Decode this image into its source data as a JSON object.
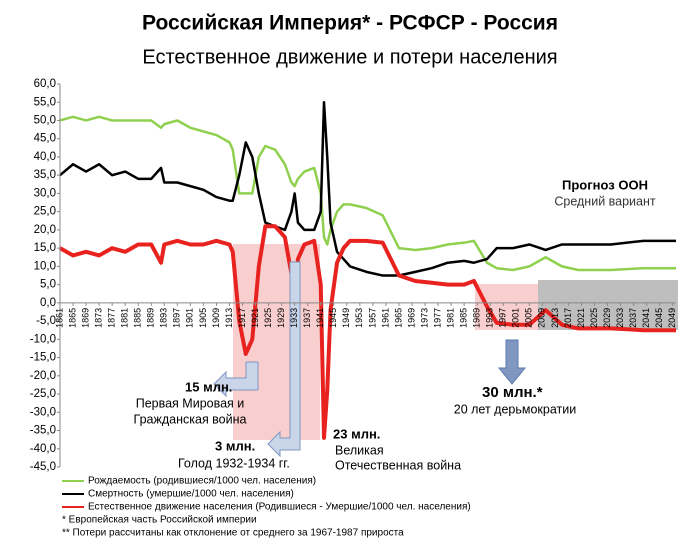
{
  "chart_data": {
    "type": "line",
    "title": "Российская Империя* - РСФСР - Россия",
    "subtitle": "Естественное движение и потери населения",
    "x": [
      1861,
      1865,
      1869,
      1873,
      1877,
      1881,
      1885,
      1889,
      1892,
      1893,
      1897,
      1901,
      1905,
      1909,
      1913,
      1914,
      1916,
      1918,
      1920,
      1922,
      1924,
      1927,
      1930,
      1932,
      1933,
      1934,
      1936,
      1939,
      1941,
      1942,
      1943,
      1944,
      1946,
      1948,
      1950,
      1955,
      1960,
      1965,
      1970,
      1975,
      1980,
      1985,
      1988,
      1992,
      1995,
      2000,
      2005,
      2010,
      2015,
      2020,
      2030,
      2040,
      2050
    ],
    "series": [
      {
        "name": "Рождаемость (родившиеся/1000 чел. населения)",
        "color": "#8fd14f",
        "values": [
          50,
          51,
          50,
          51,
          50,
          50,
          50,
          50,
          48,
          49,
          50,
          48,
          47,
          46,
          44,
          42,
          30,
          30,
          30,
          40,
          43,
          42,
          38,
          33,
          32,
          34,
          36,
          37,
          30,
          18,
          16,
          20,
          25,
          27,
          27,
          26,
          24,
          15,
          14.5,
          15,
          16,
          16.5,
          17,
          11,
          9.5,
          9,
          10,
          12.5,
          10,
          9,
          9,
          9.5,
          9.5
        ]
      },
      {
        "name": "Смертность (умершие/1000 чел. населения)",
        "color": "#000000",
        "values": [
          35,
          38,
          36,
          38,
          35,
          36,
          34,
          34,
          37,
          33,
          33,
          32,
          31,
          29,
          28,
          28,
          35,
          44,
          40,
          30,
          22,
          21,
          20,
          25,
          30,
          22,
          20,
          20,
          25,
          55,
          40,
          22,
          14,
          12,
          10,
          8.5,
          7.5,
          7.5,
          8.5,
          9.5,
          11,
          11.5,
          11,
          12,
          15,
          15,
          16,
          14.5,
          16,
          16,
          16,
          17,
          17
        ]
      },
      {
        "name": "Естественное движение населения (Родившиеся - Умершие/1000 чел. населения)",
        "color": "#e8231f",
        "values": [
          15,
          13,
          14,
          13,
          15,
          14,
          16,
          16,
          11,
          16,
          17,
          16,
          16,
          17,
          16,
          14,
          -5,
          -14,
          -10,
          10,
          21,
          21,
          18,
          8,
          2,
          12,
          16,
          17,
          5,
          -37,
          -24,
          -2,
          11,
          15,
          17,
          17,
          16.5,
          7.5,
          6,
          5.5,
          5,
          5,
          6,
          -1,
          -5.5,
          -6,
          -6,
          -2,
          -6,
          -7,
          -7,
          -7.5,
          -7.5
        ]
      }
    ],
    "xlim": [
      1861,
      2050
    ],
    "xticks": [
      1861,
      1865,
      1869,
      1873,
      1877,
      1881,
      1885,
      1889,
      1893,
      1897,
      1901,
      1905,
      1909,
      1913,
      1917,
      1921,
      1925,
      1929,
      1933,
      1937,
      1941,
      1945,
      1949,
      1953,
      1957,
      1961,
      1965,
      1969,
      1973,
      1977,
      1981,
      1985,
      1989,
      1993,
      1997,
      2001,
      2005,
      2009,
      2013,
      2017,
      2021,
      2025,
      2029,
      2033,
      2037,
      2041,
      2045,
      2049
    ],
    "ylim": [
      -45,
      60
    ],
    "yticks": [
      {
        "value": -45,
        "label": "-45,0"
      },
      {
        "value": -40,
        "label": "-40,0"
      },
      {
        "value": -35,
        "label": "-35,0"
      },
      {
        "value": -30,
        "label": "-30,0"
      },
      {
        "value": -25,
        "label": "-25,0"
      },
      {
        "value": -20,
        "label": "-20,0"
      },
      {
        "value": -15,
        "label": "-15,0"
      },
      {
        "value": -10,
        "label": "-10,0"
      },
      {
        "value": -5,
        "label": "-5,0"
      },
      {
        "value": 0,
        "label": "0,0"
      },
      {
        "value": 5,
        "label": "5,0"
      },
      {
        "value": 10,
        "label": "10,0"
      },
      {
        "value": 15,
        "label": "15,0"
      },
      {
        "value": 20,
        "label": "20,0"
      },
      {
        "value": 25,
        "label": "25,0"
      },
      {
        "value": 30,
        "label": "30,0"
      },
      {
        "value": 35,
        "label": "35,0"
      },
      {
        "value": 40,
        "label": "40,0"
      },
      {
        "value": 45,
        "label": "45,0"
      },
      {
        "value": 50,
        "label": "50,0"
      },
      {
        "value": 55,
        "label": "55,0"
      },
      {
        "value": 60,
        "label": "60,0"
      }
    ],
    "annotations": {
      "ww1_loss": "15 млн.",
      "ww1_l1": "Первая Мировая и",
      "ww1_l2": "Гражданская война",
      "famine_loss": "3 млн.",
      "famine": "Голод 1932-1934 гг.",
      "ww2_loss": "23 млн.",
      "ww2_l1": "Великая",
      "ww2_l2": "Отечественная война",
      "dem_loss": "30 млн.*",
      "dem": "20 лет дерьмократии",
      "forecast": "Прогноз ООН",
      "forecast_sub": "Средний вариант"
    },
    "notes": [
      "*  Европейская часть Российской империи",
      "** Потери рассчитаны как отклонение от среднего за 1967-1987 прироста"
    ]
  }
}
